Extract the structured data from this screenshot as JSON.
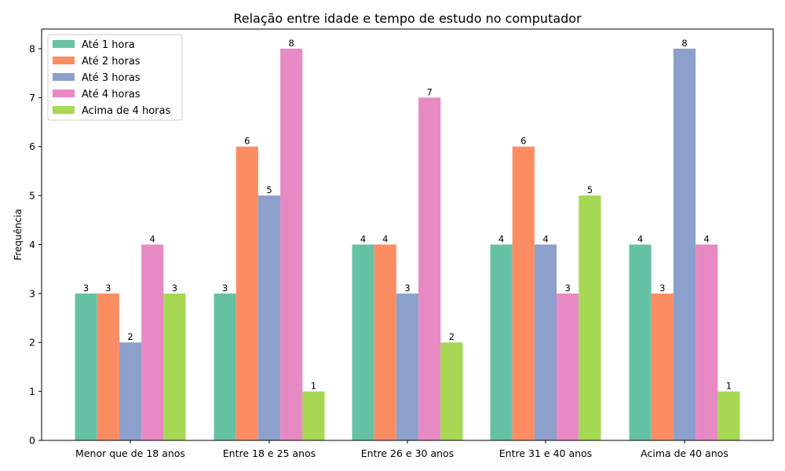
{
  "chart_data": {
    "type": "bar",
    "title": "Relação entre idade e tempo de estudo no computador",
    "xlabel": "",
    "ylabel": "Frequência",
    "ylim": [
      0,
      8.4
    ],
    "yticks": [
      "0",
      "1",
      "2",
      "3",
      "4",
      "5",
      "6",
      "7",
      "8"
    ],
    "categories": [
      "Menor que de 18 anos",
      "Entre 18 e 25 anos",
      "Entre 26 e 30 anos",
      "Entre 31 e 40 anos",
      "Acima de 40 anos"
    ],
    "series": [
      {
        "name": "Até 1 hora",
        "color": "#66c2a5",
        "values": [
          3,
          3,
          4,
          4,
          4
        ]
      },
      {
        "name": "Até 2 horas",
        "color": "#fc8d62",
        "values": [
          3,
          6,
          4,
          6,
          3
        ]
      },
      {
        "name": "Até 3 horas",
        "color": "#8da0cb",
        "values": [
          2,
          5,
          3,
          4,
          8
        ]
      },
      {
        "name": "Até 4 horas",
        "color": "#e78ac3",
        "values": [
          4,
          8,
          7,
          3,
          4
        ]
      },
      {
        "name": "Acima de 4 horas",
        "color": "#a6d854",
        "values": [
          3,
          1,
          2,
          5,
          1
        ]
      }
    ],
    "legend_position": "top-left",
    "grid": false
  }
}
